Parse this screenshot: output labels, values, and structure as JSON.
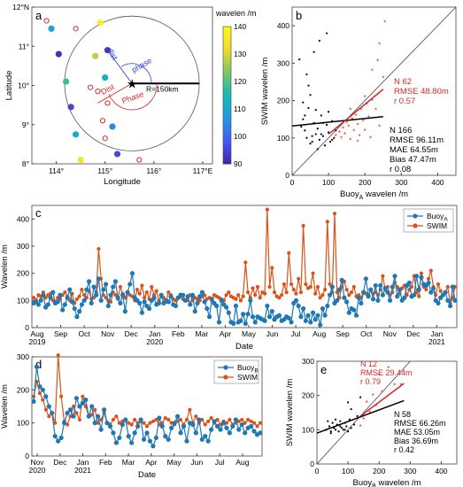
{
  "chart_data": [
    {
      "panel": "a",
      "type": "scatter",
      "title": "",
      "xlabel": "Longitude",
      "ylabel": "Latitude",
      "xlim": [
        113.5,
        117.2
      ],
      "ylim": [
        8,
        12
      ],
      "xticks": [
        "114°",
        "115°",
        "116°",
        "117°E"
      ],
      "yticks": [
        "8°",
        "9°",
        "10°",
        "11°",
        "12°N"
      ],
      "colorbar": {
        "label": "wavelen /m",
        "ticks": [
          90,
          100,
          110,
          120,
          130,
          140
        ],
        "range": [
          90,
          140
        ]
      },
      "center": {
        "lon": 115.55,
        "lat": 10.05
      },
      "circle_label": "R=150km",
      "annotations": [
        "dist",
        "phase",
        "Dist",
        "Phase"
      ],
      "points_filled": [
        {
          "lon": 113.9,
          "lat": 11.45,
          "value": 108
        },
        {
          "lon": 114.05,
          "lat": 10.8,
          "value": 92
        },
        {
          "lon": 114.2,
          "lat": 10.1,
          "value": 118
        },
        {
          "lon": 114.3,
          "lat": 9.45,
          "value": 95
        },
        {
          "lon": 114.4,
          "lat": 8.75,
          "value": 110
        },
        {
          "lon": 114.5,
          "lat": 8.1,
          "value": 135
        },
        {
          "lon": 114.8,
          "lat": 10.75,
          "value": 128
        },
        {
          "lon": 114.9,
          "lat": 11.6,
          "value": 137
        },
        {
          "lon": 115.05,
          "lat": 10.9,
          "value": 93
        },
        {
          "lon": 115.0,
          "lat": 10.2,
          "value": 112
        },
        {
          "lon": 115.15,
          "lat": 8.95,
          "value": 104
        },
        {
          "lon": 115.25,
          "lat": 8.25,
          "value": 96
        }
      ],
      "points_open": [
        {
          "lon": 113.8,
          "lat": 11.65
        },
        {
          "lon": 114.4,
          "lat": 11.45
        },
        {
          "lon": 114.7,
          "lat": 9.95
        },
        {
          "lon": 114.85,
          "lat": 9.85
        },
        {
          "lon": 114.95,
          "lat": 9.1
        },
        {
          "lon": 115.05,
          "lat": 9.55
        },
        {
          "lon": 115.0,
          "lat": 8.65
        },
        {
          "lon": 115.7,
          "lat": 8.1
        }
      ]
    },
    {
      "panel": "b",
      "type": "scatter",
      "title": "",
      "xlabel": "Buoy",
      "xlabel_sub": "A",
      "xlabel_tail": " wavelen /m",
      "ylabel": "SWIM wavelen /m",
      "xlim": [
        0,
        450
      ],
      "ylim": [
        0,
        450
      ],
      "xticks": [
        0,
        100,
        200,
        300,
        400
      ],
      "yticks": [
        0,
        100,
        200,
        300,
        400
      ],
      "stats_red": [
        "N  62",
        "RMSE 48.80m",
        "r  0.57"
      ],
      "stats_black": [
        "N  166",
        "RMSE  96.11m",
        "MAE  64.55m",
        "Bias  47.47m",
        "r  0.08"
      ],
      "fit_black": {
        "x": [
          0,
          250
        ],
        "y": [
          132,
          157
        ]
      },
      "fit_red": {
        "x": [
          100,
          250
        ],
        "y": [
          110,
          230
        ]
      },
      "points_black": [
        [
          20,
          310
        ],
        [
          30,
          150
        ],
        [
          35,
          120
        ],
        [
          40,
          100
        ],
        [
          45,
          180
        ],
        [
          50,
          215
        ],
        [
          55,
          90
        ],
        [
          60,
          140
        ],
        [
          65,
          110
        ],
        [
          70,
          125
        ],
        [
          75,
          95
        ],
        [
          80,
          160
        ],
        [
          85,
          105
        ],
        [
          90,
          80
        ],
        [
          95,
          135
        ],
        [
          100,
          115
        ],
        [
          105,
          90
        ],
        [
          110,
          145
        ],
        [
          115,
          100
        ],
        [
          120,
          120
        ],
        [
          40,
          270
        ],
        [
          45,
          240
        ],
        [
          60,
          330
        ],
        [
          75,
          360
        ],
        [
          95,
          380
        ],
        [
          30,
          195
        ],
        [
          50,
          85
        ],
        [
          65,
          175
        ],
        [
          80,
          110
        ],
        [
          100,
          170
        ],
        [
          25,
          130
        ],
        [
          35,
          160
        ],
        [
          55,
          105
        ],
        [
          70,
          70
        ],
        [
          85,
          140
        ],
        [
          110,
          95
        ]
      ],
      "points_red": [
        [
          120,
          105
        ],
        [
          130,
          115
        ],
        [
          135,
          100
        ],
        [
          140,
          125
        ],
        [
          145,
          110
        ],
        [
          150,
          140
        ],
        [
          155,
          130
        ],
        [
          160,
          95
        ],
        [
          165,
          150
        ],
        [
          170,
          118
        ],
        [
          175,
          160
        ],
        [
          180,
          135
        ],
        [
          185,
          105
        ],
        [
          190,
          175
        ],
        [
          195,
          145
        ],
        [
          200,
          120
        ],
        [
          205,
          190
        ],
        [
          210,
          155
        ],
        [
          215,
          100
        ],
        [
          220,
          200
        ],
        [
          230,
          175
        ],
        [
          240,
          130
        ],
        [
          250,
          260
        ],
        [
          220,
          280
        ],
        [
          240,
          350
        ],
        [
          255,
          410
        ],
        [
          235,
          305
        ],
        [
          200,
          210
        ],
        [
          180,
          90
        ],
        [
          160,
          175
        ]
      ]
    },
    {
      "panel": "c",
      "type": "line",
      "xlabel": "Date",
      "ylabel": "Wavelen /m",
      "ylim": [
        0,
        450
      ],
      "yticks": [
        0,
        100,
        200,
        300,
        400
      ],
      "xticks": [
        "Aug\n2019",
        "Sep",
        "Oct",
        "Nov",
        "Dec",
        "Jan\n2020",
        "Feb",
        "Mar",
        "Apr",
        "May",
        "Jun",
        "Jul",
        "Aug",
        "Sep",
        "Oct",
        "Nov",
        "Dec",
        "Jan\n2021"
      ],
      "legend": {
        "position": "top-right"
      },
      "series": [
        {
          "name": "Buoy",
          "name_sub": "A",
          "color": "#1f77b4",
          "values": [
            90,
            95,
            85,
            100,
            120,
            75,
            85,
            110,
            130,
            90,
            95,
            120,
            65,
            85,
            110,
            140,
            95,
            70,
            40,
            60,
            85,
            100,
            140,
            170,
            90,
            150,
            120,
            180,
            100,
            140,
            160,
            80,
            120,
            150,
            170,
            110,
            90,
            120,
            60,
            130,
            160,
            200,
            110,
            100,
            90,
            55,
            95,
            80,
            70,
            100,
            110,
            85,
            90,
            120,
            90,
            100,
            95,
            115,
            85,
            80,
            110,
            120,
            120,
            100,
            115,
            85,
            120,
            60,
            90,
            115,
            130,
            95,
            70,
            40,
            105,
            90,
            80,
            20,
            100,
            85,
            75,
            55,
            20,
            15,
            80,
            20,
            25,
            50,
            15,
            50,
            100,
            40,
            20,
            40,
            35,
            30,
            25,
            80,
            40,
            60,
            30,
            40,
            45,
            25,
            30,
            40,
            35,
            20,
            90,
            100,
            80,
            40,
            70,
            25,
            45,
            20,
            55,
            30,
            45,
            10,
            70,
            45,
            80,
            120,
            150,
            90,
            100,
            140,
            175,
            110,
            95,
            55,
            70,
            65,
            45,
            110,
            90,
            130,
            180,
            115,
            140,
            105,
            155,
            100,
            155,
            120,
            145,
            130,
            100,
            150,
            190,
            115,
            140,
            100,
            110,
            155,
            165,
            115,
            120,
            190,
            140,
            185,
            160,
            155,
            165,
            130,
            145,
            100,
            90,
            110,
            120,
            130,
            100,
            80,
            150,
            100
          ]
        },
        {
          "name": "SWIM",
          "color": "#d95319",
          "values": [
            110,
            100,
            120,
            115,
            130,
            110,
            120,
            125,
            100,
            95,
            110,
            105,
            120,
            130,
            115,
            100,
            125,
            90,
            105,
            115,
            140,
            120,
            110,
            135,
            105,
            110,
            130,
            290,
            180,
            120,
            110,
            100,
            95,
            130,
            120,
            105,
            150,
            125,
            110,
            130,
            120,
            115,
            100,
            140,
            125,
            155,
            110,
            130,
            105,
            150,
            120,
            135,
            100,
            115,
            110,
            95,
            130,
            120,
            105,
            100,
            110,
            115,
            105,
            100,
            100,
            120,
            100,
            110,
            105,
            100,
            115,
            120,
            105,
            110,
            100,
            120,
            115,
            110,
            105,
            100,
            120,
            130,
            115,
            110,
            105,
            120,
            100,
            115,
            240,
            130,
            110,
            145,
            120,
            150,
            110,
            130,
            125,
            435,
            150,
            220,
            130,
            115,
            110,
            120,
            160,
            130,
            275,
            160,
            140,
            125,
            180,
            130,
            375,
            160,
            145,
            150,
            200,
            125,
            150,
            110,
            120,
            140,
            390,
            160,
            130,
            420,
            130,
            110,
            150,
            170,
            140,
            120,
            130,
            150,
            115,
            120,
            110,
            130,
            125,
            120,
            140,
            125,
            130,
            120,
            140,
            190,
            140,
            150,
            120,
            130,
            165,
            150,
            125,
            145,
            155,
            120,
            140,
            150,
            190,
            130,
            115,
            200,
            150,
            140,
            180,
            210,
            150,
            120,
            160,
            135,
            120,
            130,
            150,
            90,
            110,
            150
          ]
        }
      ]
    },
    {
      "panel": "d",
      "type": "line",
      "xlabel": "Date",
      "ylabel": "Wavelen /m",
      "ylim": [
        0,
        300
      ],
      "yticks": [
        0,
        100,
        200,
        300
      ],
      "xticks": [
        "Nov\n2020",
        "Dec",
        "Jan\n2021",
        "Feb",
        "Mar",
        "Apr",
        "May",
        "Jun",
        "Jul",
        "Aug"
      ],
      "legend": {
        "position": "top-right"
      },
      "series": [
        {
          "name": "Buoy",
          "name_sub": "B",
          "color": "#1f77b4",
          "values": [
            165,
            270,
            210,
            200,
            180,
            150,
            130,
            60,
            45,
            55,
            100,
            130,
            140,
            120,
            175,
            150,
            160,
            170,
            120,
            150,
            100,
            120,
            80,
            140,
            100,
            90,
            70,
            40,
            55,
            95,
            110,
            60,
            40,
            70,
            90,
            110,
            50,
            70,
            45,
            30,
            55,
            115,
            90,
            60,
            50,
            85,
            100,
            120,
            70,
            90,
            45,
            100,
            95,
            70,
            110,
            50,
            60,
            45,
            80,
            105,
            90,
            80,
            100,
            85,
            70,
            90,
            110,
            80,
            95,
            70,
            85,
            90,
            75,
            65,
            70
          ]
        },
        {
          "name": "SWIM",
          "color": "#d95319",
          "values": [
            180,
            225,
            190,
            170,
            140,
            120,
            130,
            100,
            305,
            180,
            105,
            95,
            120,
            150,
            130,
            110,
            180,
            150,
            120,
            125,
            140,
            100,
            110,
            130,
            100,
            95,
            110,
            120,
            100,
            105,
            110,
            100,
            95,
            110,
            100,
            105,
            100,
            90,
            100,
            105,
            110,
            95,
            100,
            115,
            110,
            100,
            95,
            105,
            110,
            95,
            110,
            140,
            100,
            120,
            100,
            110,
            95,
            105,
            115,
            100,
            110,
            95,
            105,
            100,
            110,
            95,
            100,
            105,
            110,
            100,
            110,
            105,
            100,
            90,
            100
          ]
        }
      ]
    },
    {
      "panel": "e",
      "type": "scatter",
      "xlabel": "Buoy",
      "xlabel_sub": "B",
      "xlabel_tail": " wavelen /m",
      "ylabel": "SWIM wavelen /m",
      "xlim": [
        0,
        450
      ],
      "ylim": [
        0,
        300
      ],
      "xticks": [
        0,
        100,
        200,
        300,
        400
      ],
      "yticks": [
        0,
        100,
        200,
        300
      ],
      "stats_red": [
        "N  12",
        "RMSE 29.44m",
        "r  0.79"
      ],
      "stats_black": [
        "N  58",
        "RMSE 66.26m",
        "MAE  53.05m",
        "Bias  36.69m",
        "r  0.42"
      ],
      "fit_black": {
        "x": [
          0,
          280
        ],
        "y": [
          90,
          185
        ]
      },
      "fit_red": {
        "x": [
          140,
          280
        ],
        "y": [
          140,
          235
        ]
      },
      "points_black": [
        [
          30,
          100
        ],
        [
          40,
          110
        ],
        [
          45,
          95
        ],
        [
          50,
          120
        ],
        [
          55,
          105
        ],
        [
          60,
          100
        ],
        [
          65,
          115
        ],
        [
          70,
          95
        ],
        [
          75,
          110
        ],
        [
          80,
          105
        ],
        [
          85,
          100
        ],
        [
          90,
          120
        ],
        [
          95,
          110
        ],
        [
          100,
          95
        ],
        [
          105,
          130
        ],
        [
          110,
          105
        ],
        [
          120,
          115
        ],
        [
          35,
          125
        ],
        [
          45,
          90
        ],
        [
          60,
          130
        ],
        [
          75,
          125
        ],
        [
          90,
          100
        ],
        [
          100,
          180
        ],
        [
          110,
          160
        ],
        [
          130,
          140
        ],
        [
          140,
          195
        ]
      ],
      "points_red": [
        [
          140,
          110
        ],
        [
          150,
          140
        ],
        [
          160,
          180
        ],
        [
          170,
          150
        ],
        [
          180,
          200
        ],
        [
          190,
          170
        ],
        [
          200,
          260
        ],
        [
          210,
          210
        ],
        [
          230,
          280
        ],
        [
          250,
          230
        ],
        [
          270,
          230
        ],
        [
          150,
          130
        ]
      ]
    }
  ]
}
